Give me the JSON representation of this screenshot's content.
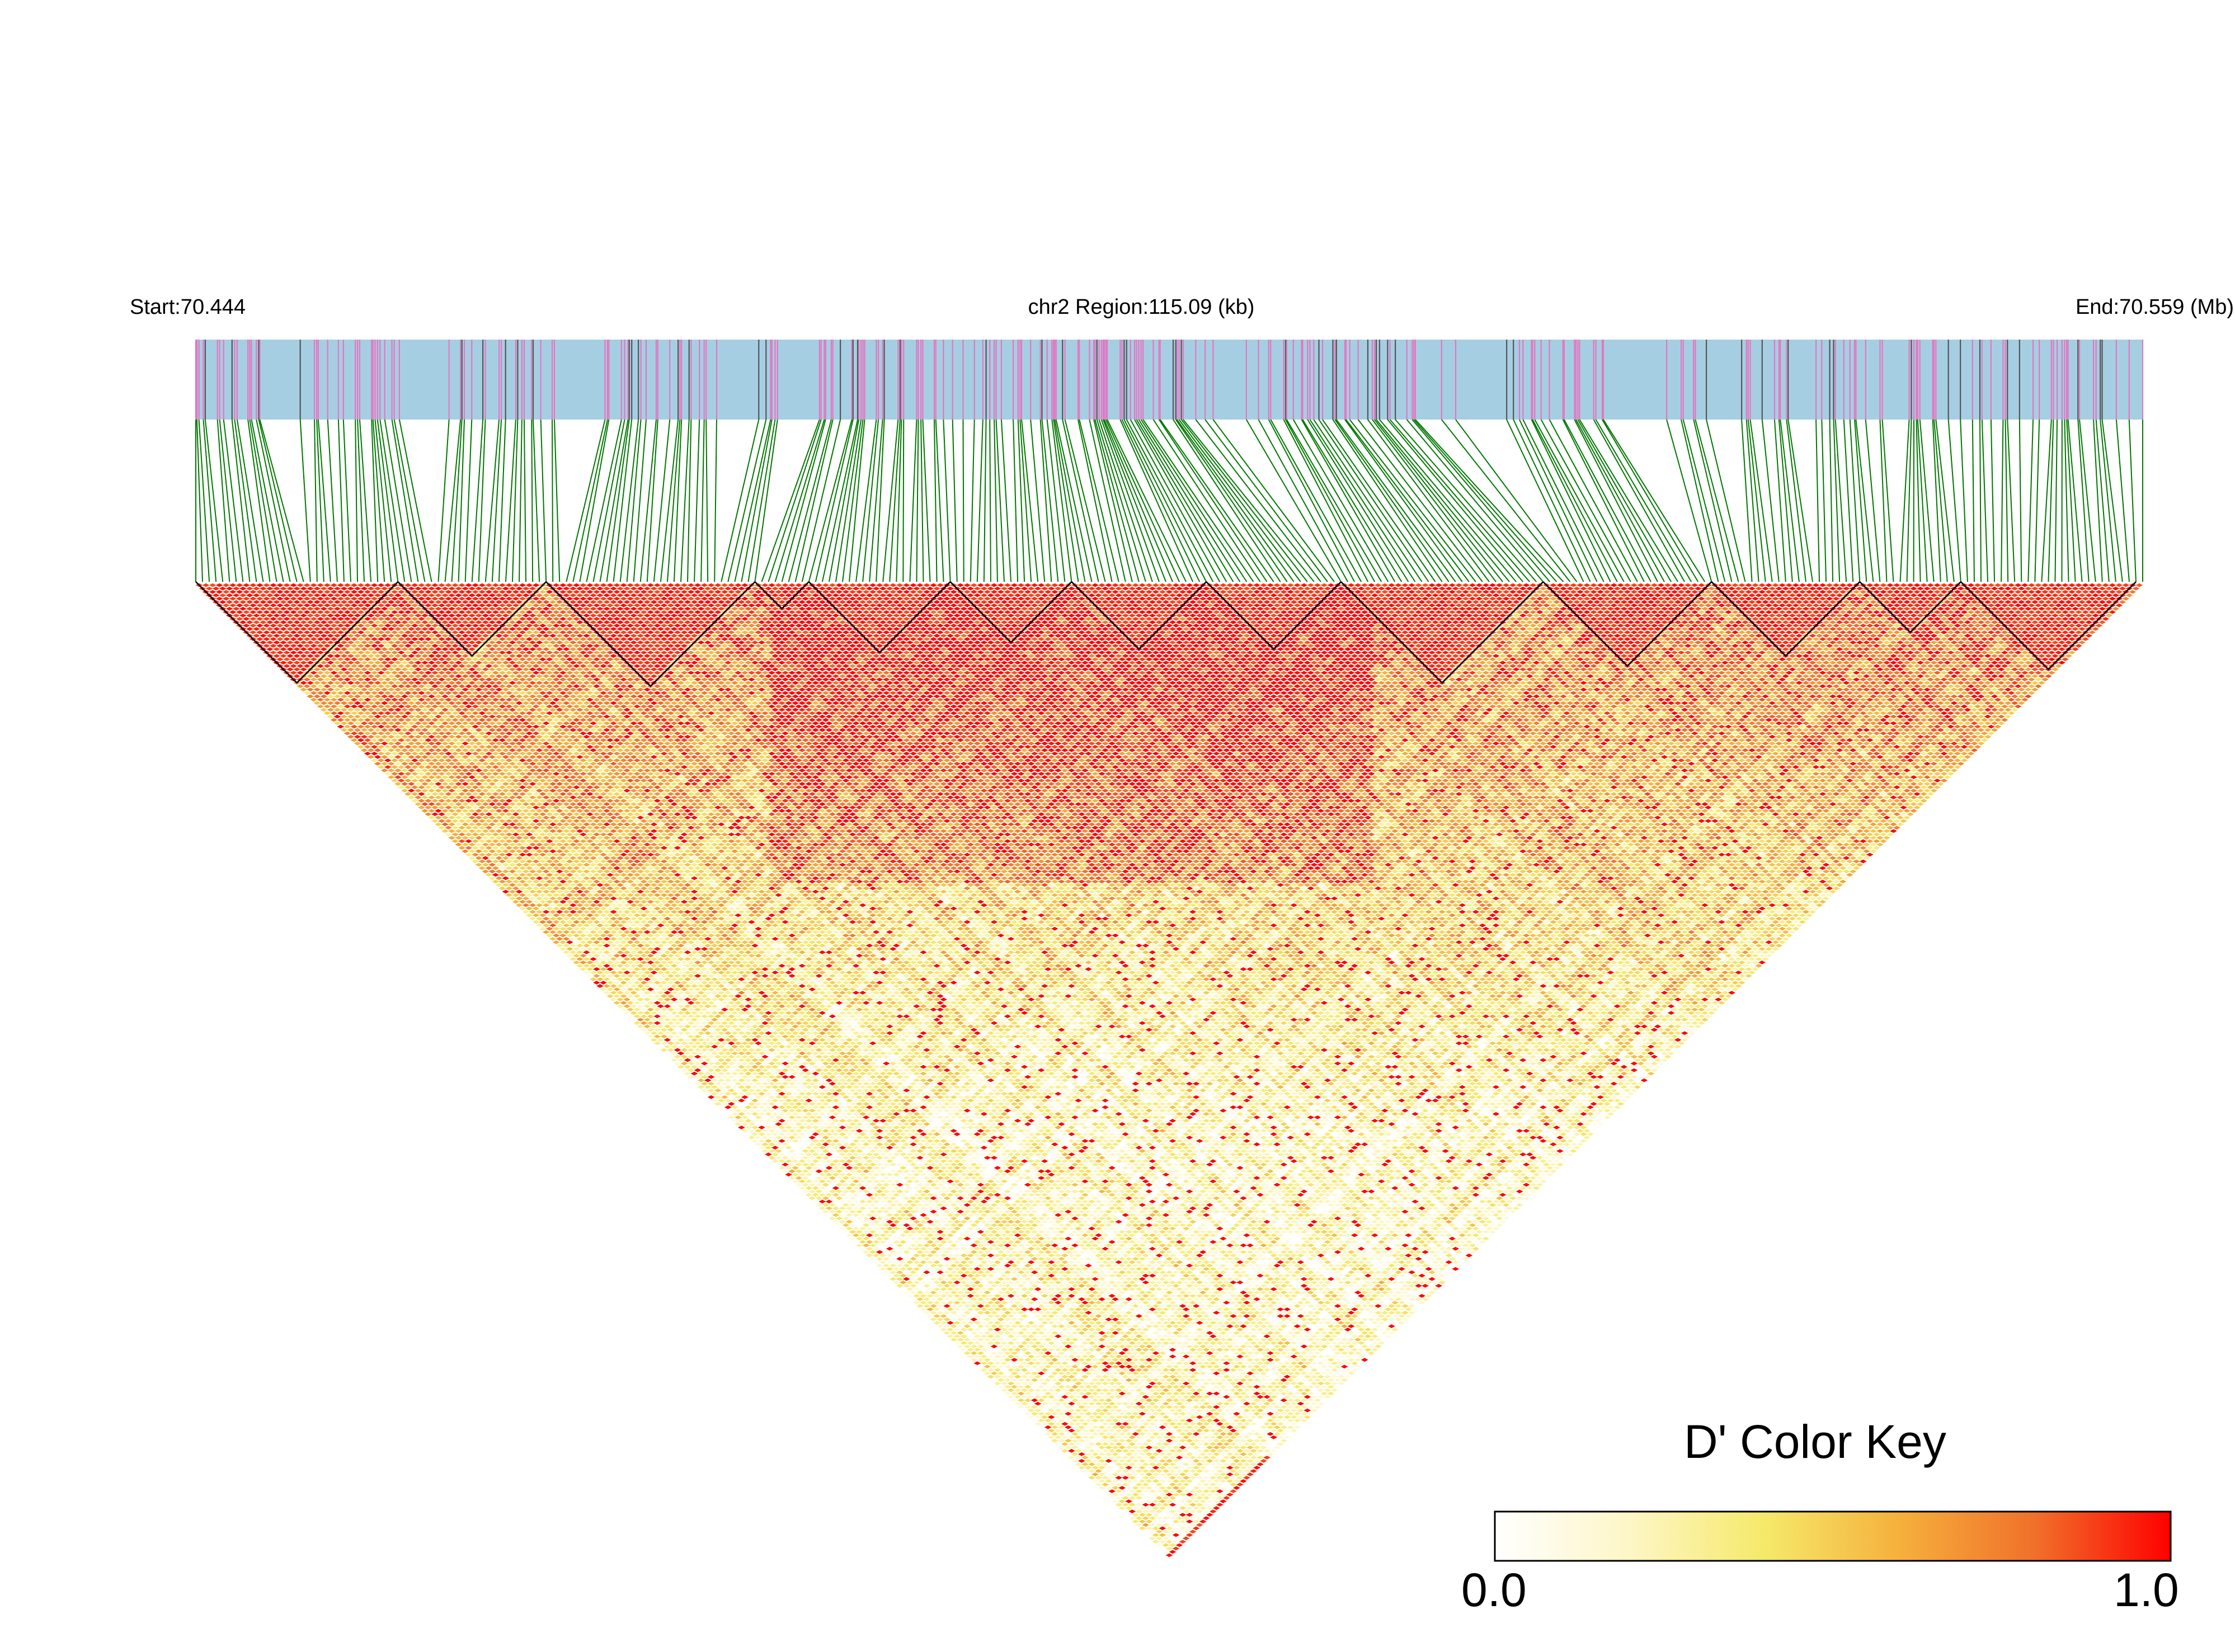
{
  "chart_data": {
    "type": "heatmap",
    "subtype": "linkage-disequilibrium-triangle",
    "header": {
      "start_label": "Start:70.444",
      "region_label": "chr2 Region:115.09 (kb)",
      "end_label": "End:70.559 (Mb)"
    },
    "chromosome": "chr2",
    "region_start_mb": 70.444,
    "region_end_mb": 70.559,
    "region_length_kb": 115.09,
    "snp_count": 290,
    "metric": "D'",
    "value_range": [
      0.0,
      1.0
    ],
    "ld_block_edges_snp_index": [
      0,
      30,
      52,
      83,
      91,
      112,
      130,
      150,
      170,
      200,
      225,
      247,
      262,
      288
    ],
    "color_key": {
      "title": "D' Color Key",
      "min_label": "0.0",
      "max_label": "1.0",
      "colors": [
        "#ffffff",
        "#fdf6c6",
        "#f5e96a",
        "#f5b03c",
        "#f0702a",
        "#ff0000"
      ]
    },
    "colors": {
      "track_background": "#a6cee3",
      "snp_tick_primary": "#e377c2",
      "snp_tick_secondary": "#555555",
      "connector_lines": "#007700",
      "high_ld": "#ff0000",
      "block_outline": "#000000"
    }
  }
}
